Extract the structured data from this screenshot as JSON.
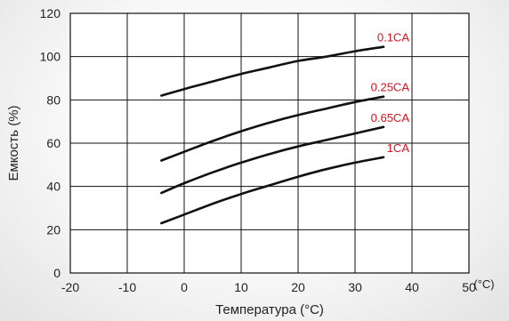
{
  "chart_data": {
    "type": "line",
    "title": "",
    "xlabel": "Температура (°C)",
    "ylabel": "Емкость (%)",
    "x_unit_label": "(°C)",
    "xlim": [
      -20,
      50
    ],
    "ylim": [
      0,
      120
    ],
    "x_ticks": [
      -20,
      -10,
      0,
      10,
      20,
      30,
      40,
      50
    ],
    "y_ticks": [
      0,
      20,
      40,
      60,
      80,
      100,
      120
    ],
    "grid": true,
    "legend": "inline-labels",
    "line_color": "#111111",
    "label_color": "#d4141e",
    "series": [
      {
        "name": "0.1CA",
        "x": [
          -4,
          0,
          5,
          10,
          15,
          20,
          25,
          30,
          35
        ],
        "y": [
          82,
          85,
          88.5,
          92,
          95,
          98,
          100,
          102.5,
          104.5
        ]
      },
      {
        "name": "0.25CA",
        "x": [
          -4,
          0,
          5,
          10,
          15,
          20,
          25,
          30,
          35
        ],
        "y": [
          52,
          56,
          61,
          65.5,
          69.5,
          73,
          76,
          79,
          81.5
        ]
      },
      {
        "name": "0.65CA",
        "x": [
          -4,
          0,
          5,
          10,
          15,
          20,
          25,
          30,
          35
        ],
        "y": [
          37,
          41.5,
          46.5,
          51,
          55,
          58.5,
          61.5,
          64.5,
          67.5
        ]
      },
      {
        "name": "1CA",
        "x": [
          -4,
          0,
          5,
          10,
          15,
          20,
          25,
          30,
          35
        ],
        "y": [
          23,
          27,
          32,
          36.5,
          40.5,
          44.5,
          48,
          51,
          53.5
        ]
      }
    ]
  }
}
